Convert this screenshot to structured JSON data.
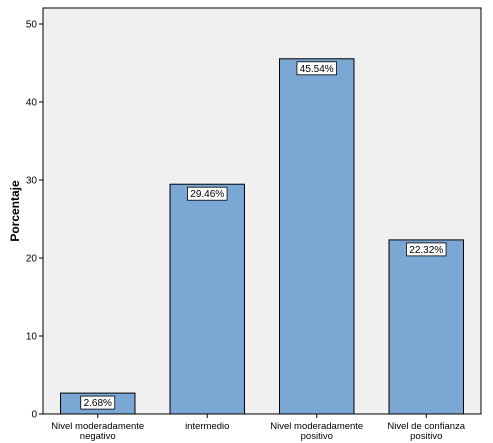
{
  "chart_data": {
    "type": "bar",
    "categories": [
      [
        "Nivel moderadamente",
        "negativo"
      ],
      [
        "intermedio"
      ],
      [
        "Nivel moderadamente",
        "positivo"
      ],
      [
        "Nivel de confianza",
        "positivo"
      ]
    ],
    "values": [
      2.68,
      29.46,
      45.54,
      22.32
    ],
    "data_labels": [
      "2.68%",
      "29.46%",
      "45.54%",
      "22.32%"
    ],
    "title": "",
    "xlabel": "",
    "ylabel": "Porcentaje",
    "ylim": [
      0,
      50
    ],
    "yticks": [
      0,
      10,
      20,
      30,
      40,
      50
    ],
    "grid": false,
    "colors": {
      "bar_fill": "#7ba7d4",
      "bar_stroke": "#000000",
      "plot_bg": "#f0f0f0",
      "axis": "#000000"
    }
  }
}
